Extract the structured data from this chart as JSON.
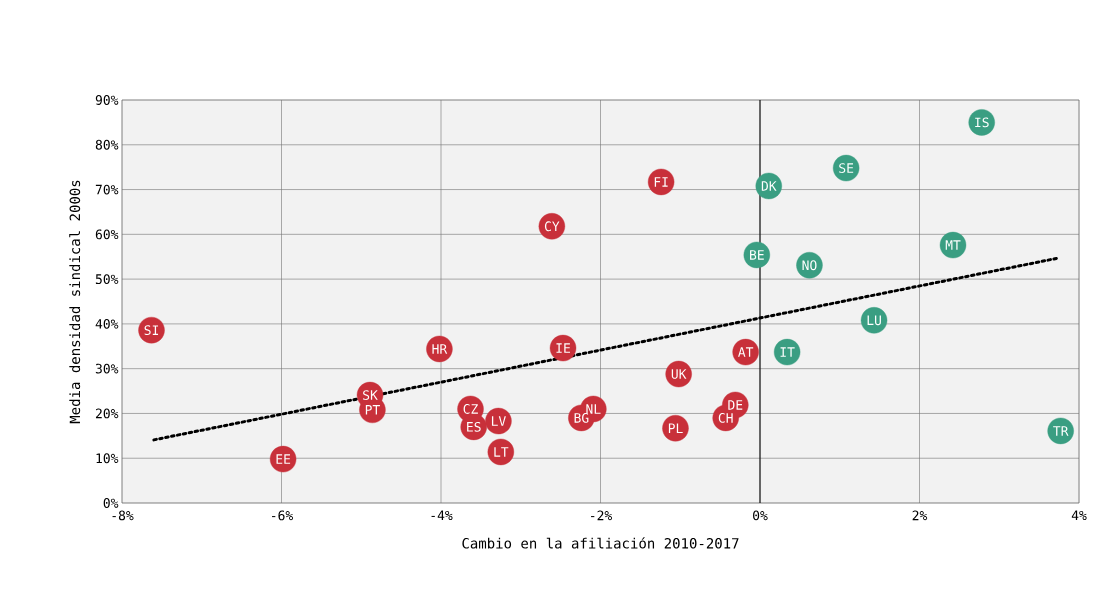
{
  "chart_data": {
    "type": "scatter",
    "xlabel": "Cambio en la afiliación 2010-2017",
    "ylabel": "Media densidad sindical 2000s",
    "xlim": [
      -8,
      4
    ],
    "ylim": [
      0,
      90
    ],
    "xticks": [
      {
        "value": -8,
        "label": "-8%"
      },
      {
        "value": -6,
        "label": "-6%"
      },
      {
        "value": -4,
        "label": "-4%"
      },
      {
        "value": -2,
        "label": "-2%"
      },
      {
        "value": 0,
        "label": "0%"
      },
      {
        "value": 2,
        "label": "2%"
      },
      {
        "value": 4,
        "label": "4%"
      }
    ],
    "yticks": [
      {
        "value": 0,
        "label": "0%"
      },
      {
        "value": 10,
        "label": "10%"
      },
      {
        "value": 20,
        "label": "20%"
      },
      {
        "value": 30,
        "label": "30%"
      },
      {
        "value": 40,
        "label": "40%"
      },
      {
        "value": 50,
        "label": "50%"
      },
      {
        "value": 60,
        "label": "60%"
      },
      {
        "value": 70,
        "label": "70%"
      },
      {
        "value": 80,
        "label": "80%"
      },
      {
        "value": 90,
        "label": "90%"
      }
    ],
    "grid": true,
    "marker": "circle",
    "ref_lines": [
      {
        "axis": "x",
        "value": 0,
        "color": "#000000"
      }
    ],
    "series": [
      {
        "color": "#c8303a",
        "x": [
          -7.63,
          -5.98,
          -4.89,
          -4.86,
          -4.02,
          -3.63,
          -3.59,
          -3.28,
          -3.25,
          -2.61,
          -2.47,
          -2.24,
          -2.09,
          -1.24,
          -1.02,
          -1.06,
          -0.43,
          -0.31,
          -0.18
        ],
        "values": [
          38.6,
          9.8,
          24.1,
          20.8,
          34.4,
          21.0,
          17.0,
          18.3,
          11.4,
          61.8,
          34.6,
          19.0,
          21.0,
          71.7,
          28.8,
          16.7,
          19.0,
          21.9,
          33.7
        ]
      },
      {
        "color": "#3a9e82",
        "x": [
          -0.04,
          0.11,
          0.34,
          0.62,
          1.08,
          1.43,
          2.42,
          2.78,
          3.77
        ],
        "values": [
          55.4,
          70.8,
          33.7,
          53.1,
          74.8,
          40.8,
          57.6,
          85.0,
          16.1
        ]
      },
      {
        "type": "line",
        "color": "#000000",
        "line_style": "dotted",
        "marker": "none",
        "x": [
          -7.6,
          3.74
        ],
        "values": [
          14.1,
          54.7
        ]
      }
    ],
    "annotations": [
      {
        "text": "SI",
        "x": -7.63,
        "y": 38.6
      },
      {
        "text": "EE",
        "x": -5.98,
        "y": 9.8
      },
      {
        "text": "SK",
        "x": -4.89,
        "y": 24.1
      },
      {
        "text": "PT",
        "x": -4.86,
        "y": 20.8
      },
      {
        "text": "HR",
        "x": -4.02,
        "y": 34.4
      },
      {
        "text": "CZ",
        "x": -3.63,
        "y": 21.0
      },
      {
        "text": "ES",
        "x": -3.59,
        "y": 17.0
      },
      {
        "text": "LV",
        "x": -3.28,
        "y": 18.3
      },
      {
        "text": "LT",
        "x": -3.25,
        "y": 11.4
      },
      {
        "text": "CY",
        "x": -2.61,
        "y": 61.8
      },
      {
        "text": "IE",
        "x": -2.47,
        "y": 34.6
      },
      {
        "text": "BG",
        "x": -2.24,
        "y": 19.0
      },
      {
        "text": "NL",
        "x": -2.09,
        "y": 21.0
      },
      {
        "text": "FI",
        "x": -1.24,
        "y": 71.7
      },
      {
        "text": "UK",
        "x": -1.02,
        "y": 28.8
      },
      {
        "text": "PL",
        "x": -1.06,
        "y": 16.7
      },
      {
        "text": "CH",
        "x": -0.43,
        "y": 19.0
      },
      {
        "text": "DE",
        "x": -0.31,
        "y": 21.9
      },
      {
        "text": "AT",
        "x": -0.18,
        "y": 33.7
      },
      {
        "text": "BE",
        "x": -0.04,
        "y": 55.4
      },
      {
        "text": "DK",
        "x": 0.11,
        "y": 70.8
      },
      {
        "text": "IT",
        "x": 0.34,
        "y": 33.7
      },
      {
        "text": "NO",
        "x": 0.62,
        "y": 53.1
      },
      {
        "text": "SE",
        "x": 1.08,
        "y": 74.8
      },
      {
        "text": "LU",
        "x": 1.43,
        "y": 40.8
      },
      {
        "text": "MT",
        "x": 2.42,
        "y": 57.6
      },
      {
        "text": "IS",
        "x": 2.78,
        "y": 85.0
      },
      {
        "text": "TR",
        "x": 3.77,
        "y": 16.1
      }
    ]
  }
}
